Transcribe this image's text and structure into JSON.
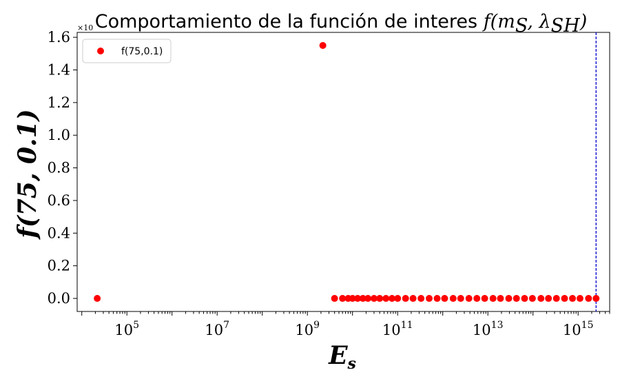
{
  "chart_data": {
    "type": "scatter",
    "title": {
      "text": "Comportamiento de la función de interes ",
      "math": "f(m",
      "math_sub1": "S",
      "math_mid": ", λ",
      "math_sub2": "SH",
      "math_end": ")"
    },
    "xlabel": "E",
    "xlabel_sub": "s",
    "ylabel": "f(75, 0.1)",
    "x_scale": "log",
    "xlim": [
      7900.0,
      5000000000000000.0
    ],
    "ylim": [
      -0.08,
      1.63
    ],
    "y_multiplier_label": "×10",
    "y_ticks": [
      "0.0",
      "0.2",
      "0.4",
      "0.6",
      "0.8",
      "1.0",
      "1.2",
      "1.4",
      "1.6"
    ],
    "x_ticks": [
      {
        "base": "10",
        "exp": "5",
        "value": 100000.0
      },
      {
        "base": "10",
        "exp": "7",
        "value": 10000000.0
      },
      {
        "base": "10",
        "exp": "9",
        "value": 1000000000.0
      },
      {
        "base": "10",
        "exp": "11",
        "value": 100000000000.0
      },
      {
        "base": "10",
        "exp": "13",
        "value": 10000000000000.0
      },
      {
        "base": "10",
        "exp": "15",
        "value": 1000000000000000.0
      }
    ],
    "vline": {
      "x": 2500000000000000.0,
      "color": "#0000cc",
      "style": "dashed"
    },
    "series": [
      {
        "name": "f(75,0.1)",
        "color": "#ff0000",
        "points": [
          [
            22000.0,
            0.0
          ],
          [
            2200000000.0,
            1.55
          ],
          [
            4000000000.0,
            0.0
          ],
          [
            6000000000.0,
            0.0
          ],
          [
            8000000000.0,
            0.0
          ],
          [
            10000000000.0,
            0.0
          ],
          [
            13000000000.0,
            0.0
          ],
          [
            17000000000.0,
            0.0
          ],
          [
            22000000000.0,
            0.0
          ],
          [
            30000000000.0,
            0.0
          ],
          [
            40000000000.0,
            0.0
          ],
          [
            55000000000.0,
            0.0
          ],
          [
            75000000000.0,
            0.0
          ],
          [
            100000000000.0,
            0.0
          ],
          [
            150000000000.0,
            0.0
          ],
          [
            220000000000.0,
            0.0
          ],
          [
            330000000000.0,
            0.0
          ],
          [
            500000000000.0,
            0.0
          ],
          [
            750000000000.0,
            0.0
          ],
          [
            1100000000000.0,
            0.0
          ],
          [
            1700000000000.0,
            0.0
          ],
          [
            2500000000000.0,
            0.0
          ],
          [
            3800000000000.0,
            0.0
          ],
          [
            5700000000000.0,
            0.0
          ],
          [
            8500000000000.0,
            0.0
          ],
          [
            13000000000000.0,
            0.0
          ],
          [
            19000000000000.0,
            0.0
          ],
          [
            29000000000000.0,
            0.0
          ],
          [
            43000000000000.0,
            0.0
          ],
          [
            65000000000000.0,
            0.0
          ],
          [
            97000000000000.0,
            0.0
          ],
          [
            150000000000000.0,
            0.0
          ],
          [
            220000000000000.0,
            0.0
          ],
          [
            330000000000000.0,
            0.0
          ],
          [
            500000000000000.0,
            0.0
          ],
          [
            750000000000000.0,
            0.0
          ],
          [
            1100000000000000.0,
            0.0
          ],
          [
            1700000000000000.0,
            0.0
          ],
          [
            2500000000000000.0,
            0.0
          ]
        ]
      }
    ],
    "legend": {
      "location": "upper left",
      "label": "f(75,0.1)"
    }
  }
}
